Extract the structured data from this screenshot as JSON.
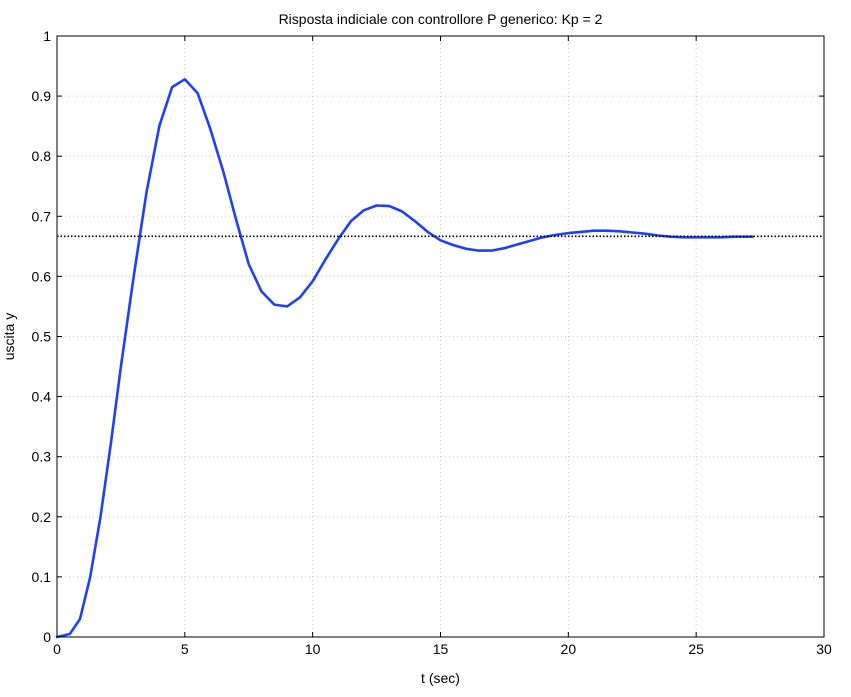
{
  "chart_data": {
    "type": "line",
    "title": "Risposta indiciale con controllore P generico: Kp = 2",
    "xlabel": "t (sec)",
    "ylabel": "uscita y",
    "xlim": [
      0,
      30
    ],
    "ylim": [
      0,
      1
    ],
    "x_ticks": [
      "0",
      "5",
      "10",
      "15",
      "20",
      "25",
      "30"
    ],
    "y_ticks": [
      "0",
      "0.1",
      "0.2",
      "0.3",
      "0.4",
      "0.5",
      "0.6",
      "0.7",
      "0.8",
      "0.9",
      "1"
    ],
    "grid": true,
    "series": [
      {
        "color": "#1f3fff",
        "style": "solid",
        "x": [
          0,
          0.5,
          0.9,
          1.3,
          1.7,
          2.1,
          2.5,
          3.0,
          3.5,
          4.0,
          4.5,
          5.0,
          5.5,
          6.0,
          6.5,
          7.0,
          7.5,
          8.0,
          8.5,
          9.0,
          9.5,
          10.0,
          10.5,
          11.0,
          11.5,
          12.0,
          12.5,
          13.0,
          13.5,
          14.0,
          14.5,
          15.0,
          15.5,
          16.0,
          16.5,
          17.0,
          17.5,
          18.0,
          18.5,
          19.0,
          19.5,
          20.0,
          20.5,
          21.0,
          21.5,
          22.0,
          22.5,
          23.0,
          23.5,
          24.0,
          24.5,
          25.0,
          25.5,
          26.0,
          26.5,
          27.2
        ],
        "y": [
          0,
          0.005,
          0.03,
          0.1,
          0.2,
          0.32,
          0.45,
          0.6,
          0.74,
          0.85,
          0.915,
          0.928,
          0.905,
          0.845,
          0.775,
          0.695,
          0.62,
          0.575,
          0.553,
          0.55,
          0.565,
          0.592,
          0.628,
          0.662,
          0.692,
          0.71,
          0.718,
          0.717,
          0.708,
          0.692,
          0.674,
          0.66,
          0.652,
          0.646,
          0.643,
          0.643,
          0.647,
          0.653,
          0.659,
          0.665,
          0.669,
          0.672,
          0.674,
          0.676,
          0.676,
          0.675,
          0.673,
          0.671,
          0.668,
          0.666,
          0.665,
          0.665,
          0.665,
          0.665,
          0.666,
          0.666
        ]
      },
      {
        "color": "#000000",
        "style": "dotted",
        "x": [
          0,
          30
        ],
        "y": [
          0.6667,
          0.6667
        ]
      }
    ]
  }
}
